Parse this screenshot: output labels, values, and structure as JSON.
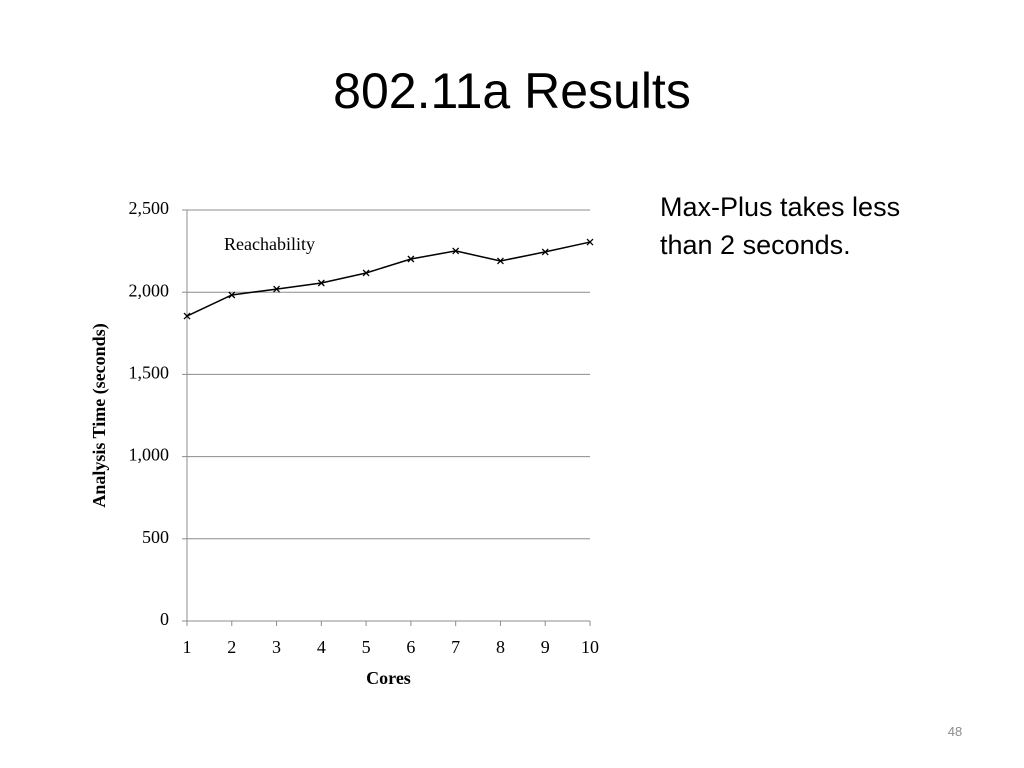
{
  "slide": {
    "title": "802.11a Results",
    "text": "Max-Plus takes less than 2 seconds.",
    "page_number": "48"
  },
  "chart_data": {
    "type": "line",
    "x_label": "Cores",
    "y_label": "Analysis Time (seconds)",
    "x": [
      1,
      2,
      3,
      4,
      5,
      6,
      7,
      8,
      9,
      10
    ],
    "series": [
      {
        "name": "Reachability",
        "color": "#000000",
        "values": [
          1855,
          1983,
          2019,
          2056,
          2117,
          2202,
          2251,
          2190,
          2245,
          2305
        ]
      }
    ],
    "xlim": [
      1,
      10
    ],
    "xticks": [
      1,
      2,
      3,
      4,
      5,
      6,
      7,
      8,
      9,
      10
    ],
    "ylim": [
      0,
      2500
    ],
    "yticks": [
      0,
      500,
      {
        "value": 1000,
        "label": "1,000"
      },
      {
        "value": 1500,
        "label": "1,500"
      },
      {
        "value": 2000,
        "label": "2,000"
      },
      {
        "value": 2500,
        "label": "2,500"
      }
    ],
    "grid": true
  }
}
